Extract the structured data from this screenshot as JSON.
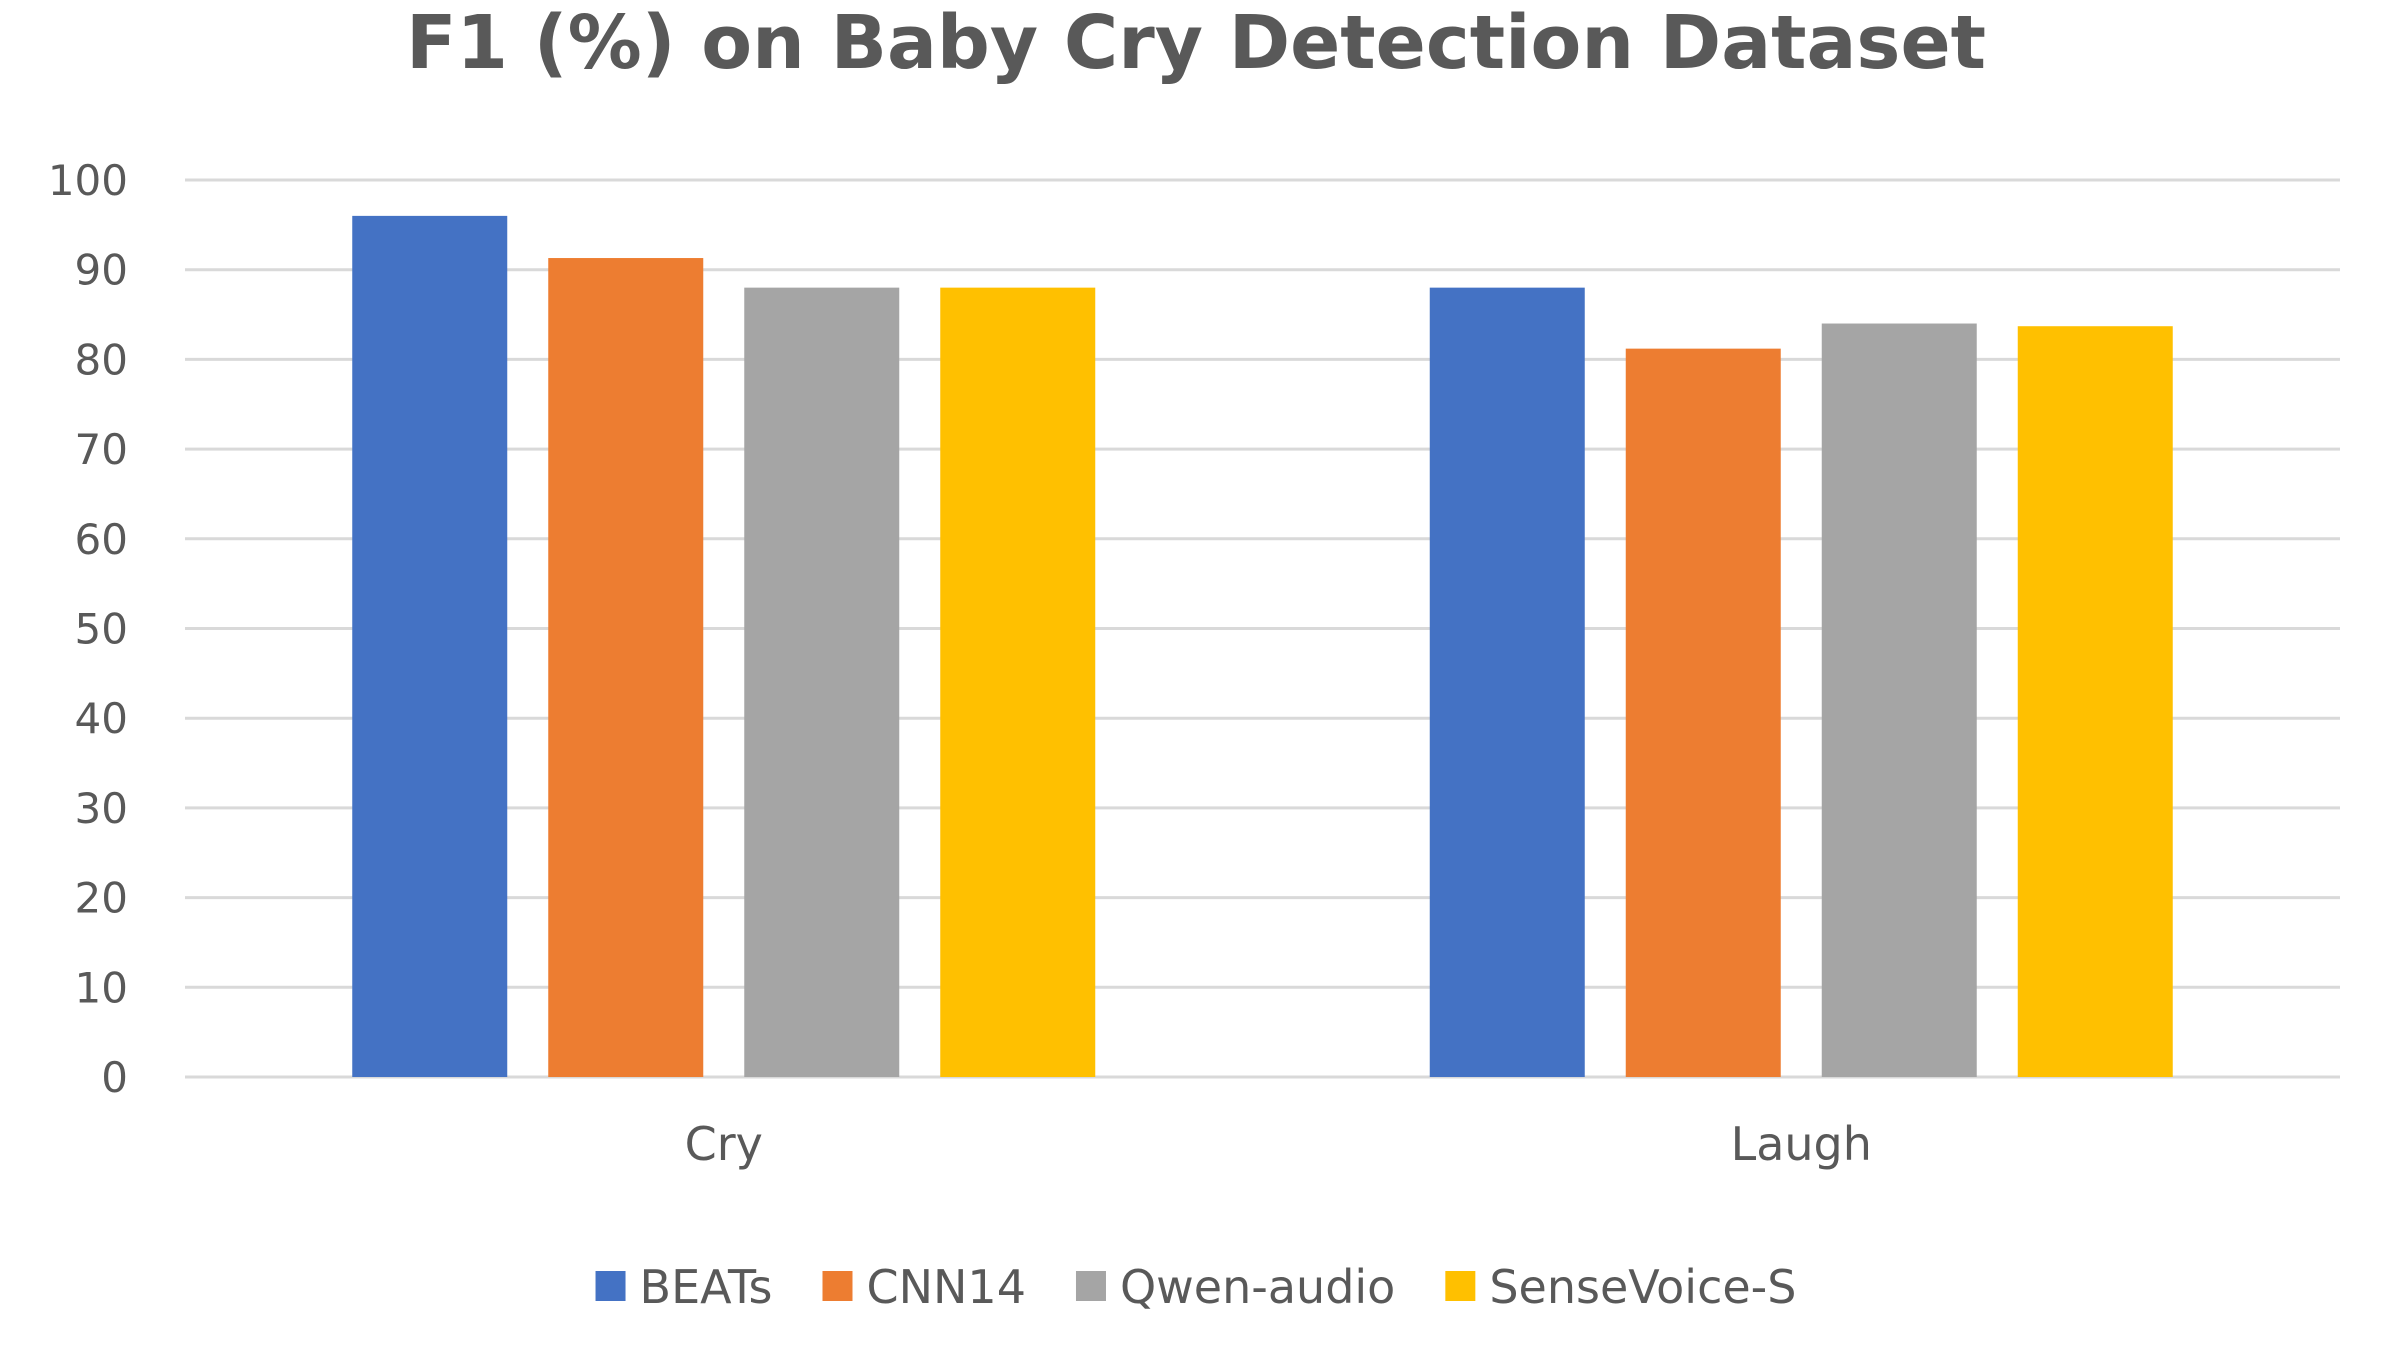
{
  "chart_data": {
    "type": "bar",
    "title": "F1 (%) on Baby Cry Detection Dataset",
    "xlabel": "",
    "ylabel": "",
    "categories": [
      "Cry",
      "Laugh"
    ],
    "ylim": [
      0,
      100
    ],
    "yticks": [
      0,
      10,
      20,
      30,
      40,
      50,
      60,
      70,
      80,
      90,
      100
    ],
    "grid": true,
    "legend_position": "bottom",
    "series": [
      {
        "name": "BEATs",
        "color": "#4472c4",
        "values": [
          96.0,
          88.0
        ]
      },
      {
        "name": "CNN14",
        "color": "#ed7d31",
        "values": [
          91.3,
          81.2
        ]
      },
      {
        "name": "Qwen-audio",
        "color": "#a5a5a5",
        "values": [
          88.0,
          84.0
        ]
      },
      {
        "name": "SenseVoice-S",
        "color": "#ffc000",
        "values": [
          88.0,
          83.7
        ]
      }
    ]
  }
}
